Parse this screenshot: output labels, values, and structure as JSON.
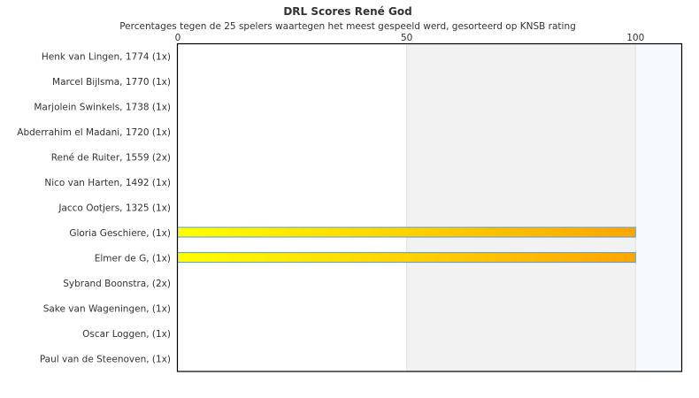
{
  "chart_data": {
    "type": "bar",
    "orientation": "horizontal",
    "title": "DRL Scores René God",
    "subtitle": "Percentages tegen de 25 spelers waartegen het meest gespeeld werd, gesorteerd op KNSB rating",
    "categories": [
      "Henk van Lingen, 1774 (1x)",
      "Marcel Bijlsma, 1770 (1x)",
      "Marjolein Swinkels, 1738 (1x)",
      "Abderrahim el Madani, 1720 (1x)",
      "René de Ruiter, 1559 (2x)",
      "Nico van Harten, 1492 (1x)",
      "Jacco Ootjers, 1325 (1x)",
      "Gloria Geschiere,  (1x)",
      "Elmer de G,  (1x)",
      "Sybrand Boonstra,  (2x)",
      "Sake van Wageningen,  (1x)",
      "Oscar Loggen,  (1x)",
      "Paul van de Steenoven,  (1x)"
    ],
    "values": [
      0,
      0,
      0,
      0,
      0,
      0,
      0,
      100,
      100,
      0,
      0,
      0,
      0
    ],
    "xlim": [
      0,
      110
    ],
    "xticks": [
      "0",
      "50",
      "100"
    ],
    "xtick_values": [
      0,
      50,
      100
    ],
    "bands": [
      {
        "from": 50,
        "to": 100,
        "color": "#f2f2f2"
      },
      {
        "from": 100,
        "to": 110,
        "color": "#f7fafd"
      }
    ],
    "bar_gradient": [
      "#ffff00",
      "#ffa500"
    ],
    "bar_border": "#5b9bd5",
    "grid": false,
    "legend": "none"
  }
}
